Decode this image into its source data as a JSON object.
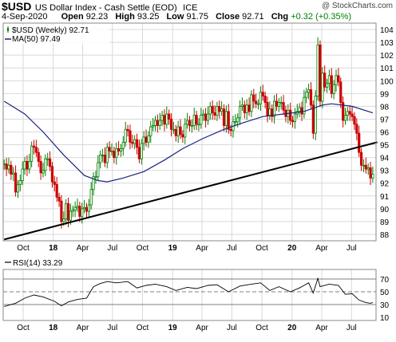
{
  "header": {
    "symbol": "$USD",
    "name": "US Dollar Index - Cash Settle (EOD)",
    "exchange": "ICE",
    "date": "4-Sep-2020",
    "open_label": "Open",
    "open": "92.23",
    "high_label": "High",
    "high": "93.25",
    "low_label": "Low",
    "low": "91.75",
    "close_label": "Close",
    "close": "92.71",
    "chg_label": "Chg",
    "chg": "+0.32 (+0.35%)",
    "watermark": "@ StockCharts.com"
  },
  "colors": {
    "up": "#008000",
    "down": "#cc0000",
    "ma": "#1a237e",
    "trendline": "#000000",
    "rsi": "#000000",
    "grid": "#d9d9d9"
  },
  "chart_data": [
    {
      "type": "candlestick",
      "title": "$USD US Dollar Index - Cash Settle (EOD) ICE",
      "legend": [
        {
          "label": "$USD (Weekly) 92.71",
          "symbol": "candle"
        },
        {
          "label": "MA(50) 97.49",
          "color": "#1a237e"
        }
      ],
      "legend_position": "top-left",
      "y_axis": {
        "position": "right",
        "range": [
          87.5,
          104.5
        ],
        "ticks": [
          88,
          89,
          90,
          91,
          92,
          93,
          94,
          95,
          96,
          97,
          98,
          99,
          100,
          101,
          102,
          103,
          104
        ]
      },
      "x_axis": {
        "ticks": [
          "Oct",
          "18",
          "Apr",
          "Jul",
          "Oct",
          "19",
          "Apr",
          "Jul",
          "Oct",
          "20",
          "Apr",
          "Jul"
        ],
        "range": [
          "2017-08",
          "2020-09"
        ]
      },
      "grid": true,
      "candles": [
        {
          "t": "2017-08-04",
          "close": 93.5
        },
        {
          "t": "2017-08-11",
          "close": 93.1
        },
        {
          "t": "2017-08-18",
          "close": 93.4
        },
        {
          "t": "2017-08-25",
          "close": 92.7
        },
        {
          "t": "2017-09-01",
          "close": 92.8
        },
        {
          "t": "2017-09-08",
          "close": 91.3
        },
        {
          "t": "2017-09-15",
          "close": 91.9
        },
        {
          "t": "2017-09-22",
          "close": 92.2
        },
        {
          "t": "2017-09-29",
          "close": 93.1
        },
        {
          "t": "2017-10-06",
          "close": 93.7
        },
        {
          "t": "2017-10-13",
          "close": 93.1
        },
        {
          "t": "2017-10-20",
          "close": 93.7
        },
        {
          "t": "2017-10-27",
          "close": 94.9
        },
        {
          "t": "2017-11-03",
          "close": 94.8
        },
        {
          "t": "2017-11-10",
          "close": 94.4
        },
        {
          "t": "2017-11-17",
          "close": 93.7
        },
        {
          "t": "2017-11-24",
          "close": 92.8
        },
        {
          "t": "2017-12-01",
          "close": 93.0
        },
        {
          "t": "2017-12-08",
          "close": 93.9
        },
        {
          "t": "2017-12-15",
          "close": 93.9
        },
        {
          "t": "2017-12-22",
          "close": 93.3
        },
        {
          "t": "2017-12-29",
          "close": 92.1
        },
        {
          "t": "2018-01-05",
          "close": 91.9
        },
        {
          "t": "2018-01-12",
          "close": 90.9
        },
        {
          "t": "2018-01-19",
          "close": 90.6
        },
        {
          "t": "2018-01-26",
          "close": 89.0
        },
        {
          "t": "2018-02-02",
          "close": 89.2
        },
        {
          "t": "2018-02-09",
          "close": 90.4
        },
        {
          "t": "2018-02-16",
          "close": 89.1
        },
        {
          "t": "2018-02-23",
          "close": 89.8
        },
        {
          "t": "2018-03-02",
          "close": 89.9
        },
        {
          "t": "2018-03-09",
          "close": 90.1
        },
        {
          "t": "2018-03-16",
          "close": 90.2
        },
        {
          "t": "2018-03-23",
          "close": 89.4
        },
        {
          "t": "2018-03-30",
          "close": 90.0
        },
        {
          "t": "2018-04-06",
          "close": 90.1
        },
        {
          "t": "2018-04-13",
          "close": 89.8
        },
        {
          "t": "2018-04-20",
          "close": 90.3
        },
        {
          "t": "2018-04-27",
          "close": 91.5
        },
        {
          "t": "2018-05-04",
          "close": 92.5
        },
        {
          "t": "2018-05-11",
          "close": 92.5
        },
        {
          "t": "2018-05-18",
          "close": 93.6
        },
        {
          "t": "2018-05-25",
          "close": 94.2
        },
        {
          "t": "2018-06-01",
          "close": 94.2
        },
        {
          "t": "2018-06-08",
          "close": 93.6
        },
        {
          "t": "2018-06-15",
          "close": 94.8
        },
        {
          "t": "2018-06-22",
          "close": 94.5
        },
        {
          "t": "2018-06-29",
          "close": 94.5
        },
        {
          "t": "2018-07-06",
          "close": 94.0
        },
        {
          "t": "2018-07-13",
          "close": 94.7
        },
        {
          "t": "2018-07-20",
          "close": 94.5
        },
        {
          "t": "2018-07-27",
          "close": 94.7
        },
        {
          "t": "2018-08-03",
          "close": 95.2
        },
        {
          "t": "2018-08-10",
          "close": 96.2
        },
        {
          "t": "2018-08-17",
          "close": 96.1
        },
        {
          "t": "2018-08-24",
          "close": 95.2
        },
        {
          "t": "2018-08-31",
          "close": 95.1
        },
        {
          "t": "2018-09-07",
          "close": 95.4
        },
        {
          "t": "2018-09-14",
          "close": 94.8
        },
        {
          "t": "2018-09-21",
          "close": 93.9
        },
        {
          "t": "2018-09-28",
          "close": 95.1
        },
        {
          "t": "2018-10-05",
          "close": 95.6
        },
        {
          "t": "2018-10-12",
          "close": 95.2
        },
        {
          "t": "2018-10-19",
          "close": 95.7
        },
        {
          "t": "2018-10-26",
          "close": 96.4
        },
        {
          "t": "2018-11-02",
          "close": 96.5
        },
        {
          "t": "2018-11-09",
          "close": 96.9
        },
        {
          "t": "2018-11-16",
          "close": 96.5
        },
        {
          "t": "2018-11-23",
          "close": 96.9
        },
        {
          "t": "2018-11-30",
          "close": 97.3
        },
        {
          "t": "2018-12-07",
          "close": 96.6
        },
        {
          "t": "2018-12-14",
          "close": 97.4
        },
        {
          "t": "2018-12-21",
          "close": 97.0
        },
        {
          "t": "2018-12-28",
          "close": 96.2
        },
        {
          "t": "2019-01-04",
          "close": 96.2
        },
        {
          "t": "2019-01-11",
          "close": 95.7
        },
        {
          "t": "2019-01-18",
          "close": 96.4
        },
        {
          "t": "2019-01-25",
          "close": 95.8
        },
        {
          "t": "2019-02-01",
          "close": 95.6
        },
        {
          "t": "2019-02-08",
          "close": 96.6
        },
        {
          "t": "2019-02-15",
          "close": 96.9
        },
        {
          "t": "2019-02-22",
          "close": 96.5
        },
        {
          "t": "2019-03-01",
          "close": 96.5
        },
        {
          "t": "2019-03-08",
          "close": 97.3
        },
        {
          "t": "2019-03-15",
          "close": 96.6
        },
        {
          "t": "2019-03-22",
          "close": 96.6
        },
        {
          "t": "2019-03-29",
          "close": 97.3
        },
        {
          "t": "2019-04-05",
          "close": 97.4
        },
        {
          "t": "2019-04-12",
          "close": 96.9
        },
        {
          "t": "2019-04-19",
          "close": 97.4
        },
        {
          "t": "2019-04-26",
          "close": 98.0
        },
        {
          "t": "2019-05-03",
          "close": 97.5
        },
        {
          "t": "2019-05-10",
          "close": 97.3
        },
        {
          "t": "2019-05-17",
          "close": 98.0
        },
        {
          "t": "2019-05-24",
          "close": 97.6
        },
        {
          "t": "2019-05-31",
          "close": 97.8
        },
        {
          "t": "2019-06-07",
          "close": 96.5
        },
        {
          "t": "2019-06-14",
          "close": 97.6
        },
        {
          "t": "2019-06-21",
          "close": 96.2
        },
        {
          "t": "2019-06-28",
          "close": 96.1
        },
        {
          "t": "2019-07-05",
          "close": 96.8
        },
        {
          "t": "2019-07-12",
          "close": 96.8
        },
        {
          "t": "2019-07-19",
          "close": 97.1
        },
        {
          "t": "2019-07-26",
          "close": 98.0
        },
        {
          "t": "2019-08-02",
          "close": 98.1
        },
        {
          "t": "2019-08-09",
          "close": 97.5
        },
        {
          "t": "2019-08-16",
          "close": 98.1
        },
        {
          "t": "2019-08-23",
          "close": 97.6
        },
        {
          "t": "2019-08-30",
          "close": 98.9
        },
        {
          "t": "2019-09-06",
          "close": 98.4
        },
        {
          "t": "2019-09-13",
          "close": 98.2
        },
        {
          "t": "2019-09-20",
          "close": 98.2
        },
        {
          "t": "2019-09-27",
          "close": 99.1
        },
        {
          "t": "2019-10-04",
          "close": 98.8
        },
        {
          "t": "2019-10-11",
          "close": 98.3
        },
        {
          "t": "2019-10-18",
          "close": 97.3
        },
        {
          "t": "2019-10-25",
          "close": 97.8
        },
        {
          "t": "2019-11-01",
          "close": 97.2
        },
        {
          "t": "2019-11-08",
          "close": 98.4
        },
        {
          "t": "2019-11-15",
          "close": 98.0
        },
        {
          "t": "2019-11-22",
          "close": 98.3
        },
        {
          "t": "2019-11-29",
          "close": 98.3
        },
        {
          "t": "2019-12-06",
          "close": 97.7
        },
        {
          "t": "2019-12-13",
          "close": 97.2
        },
        {
          "t": "2019-12-20",
          "close": 97.7
        },
        {
          "t": "2019-12-27",
          "close": 96.9
        },
        {
          "t": "2020-01-03",
          "close": 96.8
        },
        {
          "t": "2020-01-10",
          "close": 97.4
        },
        {
          "t": "2020-01-17",
          "close": 97.6
        },
        {
          "t": "2020-01-24",
          "close": 97.9
        },
        {
          "t": "2020-01-31",
          "close": 97.4
        },
        {
          "t": "2020-02-07",
          "close": 98.7
        },
        {
          "t": "2020-02-14",
          "close": 99.1
        },
        {
          "t": "2020-02-21",
          "close": 99.3
        },
        {
          "t": "2020-02-28",
          "close": 98.1
        },
        {
          "t": "2020-03-06",
          "close": 95.9
        },
        {
          "t": "2020-03-13",
          "close": 98.8
        },
        {
          "t": "2020-03-20",
          "close": 102.8
        },
        {
          "t": "2020-03-27",
          "close": 98.4
        },
        {
          "t": "2020-04-03",
          "close": 100.6
        },
        {
          "t": "2020-04-10",
          "close": 99.5
        },
        {
          "t": "2020-04-17",
          "close": 99.8
        },
        {
          "t": "2020-04-24",
          "close": 100.4
        },
        {
          "t": "2020-05-01",
          "close": 99.0
        },
        {
          "t": "2020-05-08",
          "close": 99.7
        },
        {
          "t": "2020-05-15",
          "close": 100.4
        },
        {
          "t": "2020-05-22",
          "close": 99.9
        },
        {
          "t": "2020-05-29",
          "close": 98.3
        },
        {
          "t": "2020-06-05",
          "close": 96.9
        },
        {
          "t": "2020-06-12",
          "close": 97.3
        },
        {
          "t": "2020-06-19",
          "close": 97.6
        },
        {
          "t": "2020-06-26",
          "close": 97.4
        },
        {
          "t": "2020-07-03",
          "close": 97.2
        },
        {
          "t": "2020-07-10",
          "close": 96.6
        },
        {
          "t": "2020-07-17",
          "close": 95.9
        },
        {
          "t": "2020-07-24",
          "close": 94.4
        },
        {
          "t": "2020-07-31",
          "close": 93.4
        },
        {
          "t": "2020-08-07",
          "close": 93.4
        },
        {
          "t": "2020-08-14",
          "close": 93.1
        },
        {
          "t": "2020-08-21",
          "close": 93.2
        },
        {
          "t": "2020-08-28",
          "close": 92.4
        },
        {
          "t": "2020-09-04",
          "close": 92.7
        }
      ],
      "ma50": [
        {
          "t": "2017-08-04",
          "v": 98.4
        },
        {
          "t": "2017-10-06",
          "v": 97.4
        },
        {
          "t": "2017-12-01",
          "v": 96.0
        },
        {
          "t": "2018-02-02",
          "v": 94.2
        },
        {
          "t": "2018-04-06",
          "v": 92.6
        },
        {
          "t": "2018-05-18",
          "v": 92.2
        },
        {
          "t": "2018-06-15",
          "v": 92.1
        },
        {
          "t": "2018-08-03",
          "v": 92.4
        },
        {
          "t": "2018-10-05",
          "v": 92.9
        },
        {
          "t": "2018-12-07",
          "v": 93.8
        },
        {
          "t": "2019-02-01",
          "v": 94.7
        },
        {
          "t": "2019-04-05",
          "v": 95.5
        },
        {
          "t": "2019-06-07",
          "v": 96.2
        },
        {
          "t": "2019-08-02",
          "v": 96.7
        },
        {
          "t": "2019-10-04",
          "v": 97.2
        },
        {
          "t": "2019-12-06",
          "v": 97.4
        },
        {
          "t": "2020-02-07",
          "v": 97.6
        },
        {
          "t": "2020-04-03",
          "v": 98.1
        },
        {
          "t": "2020-05-01",
          "v": 98.2
        },
        {
          "t": "2020-07-03",
          "v": 98.0
        },
        {
          "t": "2020-09-04",
          "v": 97.49
        }
      ],
      "trendline": [
        {
          "t": "2017-08-04",
          "v": 87.6
        },
        {
          "t": "2020-09-18",
          "v": 95.2
        }
      ]
    },
    {
      "type": "line",
      "legend": [
        {
          "label": "RSI(14) 33.29"
        }
      ],
      "y_axis": {
        "position": "right",
        "range": [
          5,
          85
        ],
        "ticks": [
          10,
          30,
          50,
          70
        ]
      },
      "reference_lines": [
        30,
        50,
        70
      ],
      "x_axis": {
        "ticks": [
          "Oct",
          "18",
          "Apr",
          "Jul",
          "Oct",
          "19",
          "Apr",
          "Jul",
          "Oct",
          "20",
          "Apr",
          "Jul"
        ]
      },
      "series": [
        {
          "values": [
            {
              "t": "2017-08-04",
              "v": 27
            },
            {
              "t": "2017-09-08",
              "v": 32
            },
            {
              "t": "2017-10-06",
              "v": 40
            },
            {
              "t": "2017-11-03",
              "v": 45
            },
            {
              "t": "2017-12-01",
              "v": 42
            },
            {
              "t": "2018-01-05",
              "v": 35
            },
            {
              "t": "2018-01-26",
              "v": 28
            },
            {
              "t": "2018-02-16",
              "v": 34
            },
            {
              "t": "2018-03-16",
              "v": 38
            },
            {
              "t": "2018-04-13",
              "v": 40
            },
            {
              "t": "2018-05-04",
              "v": 58
            },
            {
              "t": "2018-05-25",
              "v": 63
            },
            {
              "t": "2018-06-15",
              "v": 66
            },
            {
              "t": "2018-07-13",
              "v": 64
            },
            {
              "t": "2018-08-17",
              "v": 66
            },
            {
              "t": "2018-09-14",
              "v": 56
            },
            {
              "t": "2018-10-12",
              "v": 60
            },
            {
              "t": "2018-11-09",
              "v": 62
            },
            {
              "t": "2018-12-14",
              "v": 58
            },
            {
              "t": "2019-01-11",
              "v": 52
            },
            {
              "t": "2019-02-15",
              "v": 57
            },
            {
              "t": "2019-03-15",
              "v": 55
            },
            {
              "t": "2019-04-19",
              "v": 60
            },
            {
              "t": "2019-05-17",
              "v": 61
            },
            {
              "t": "2019-06-21",
              "v": 50
            },
            {
              "t": "2019-07-26",
              "v": 59
            },
            {
              "t": "2019-08-30",
              "v": 62
            },
            {
              "t": "2019-09-27",
              "v": 64
            },
            {
              "t": "2019-10-25",
              "v": 52
            },
            {
              "t": "2019-11-22",
              "v": 58
            },
            {
              "t": "2019-12-27",
              "v": 50
            },
            {
              "t": "2020-01-24",
              "v": 56
            },
            {
              "t": "2020-02-21",
              "v": 64
            },
            {
              "t": "2020-03-06",
              "v": 48
            },
            {
              "t": "2020-03-20",
              "v": 71
            },
            {
              "t": "2020-03-27",
              "v": 58
            },
            {
              "t": "2020-04-24",
              "v": 62
            },
            {
              "t": "2020-05-22",
              "v": 60
            },
            {
              "t": "2020-06-12",
              "v": 46
            },
            {
              "t": "2020-07-03",
              "v": 47
            },
            {
              "t": "2020-07-24",
              "v": 37
            },
            {
              "t": "2020-08-14",
              "v": 33
            },
            {
              "t": "2020-08-28",
              "v": 32
            },
            {
              "t": "2020-09-04",
              "v": 33.29
            }
          ]
        }
      ]
    }
  ]
}
